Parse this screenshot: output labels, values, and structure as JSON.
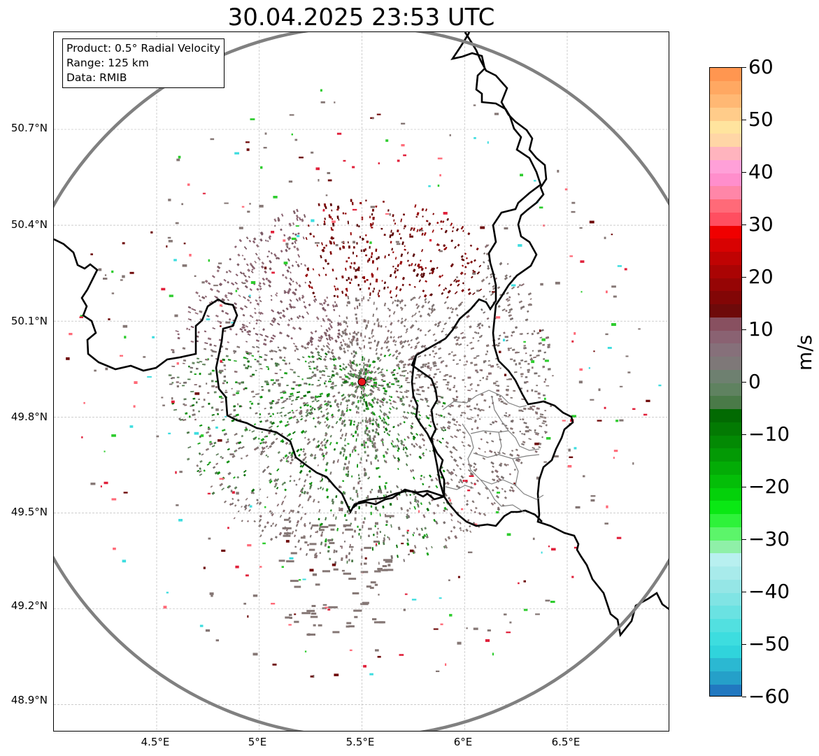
{
  "title": "30.04.2025 23:53 UTC",
  "info": {
    "product": "Product: 0.5° Radial Velocity",
    "range": "Range: 125 km",
    "data": "Data: RMIB"
  },
  "map": {
    "lat_ticks": [
      "50.7°N",
      "50.4°N",
      "50.1°N",
      "49.8°N",
      "49.5°N",
      "49.2°N",
      "48.9°N"
    ],
    "lon_ticks": [
      "4.5°E",
      "5°E",
      "5.5°E",
      "6°E",
      "6.5°E"
    ],
    "radar_site": {
      "lon": 5.5,
      "lat": 49.91,
      "color": "#e8141c"
    },
    "range_ring_color": "#808080",
    "border_color": "#000000"
  },
  "colorbar": {
    "unit": "m/s",
    "min": -60,
    "max": 60,
    "tick_labels": [
      "60",
      "50",
      "40",
      "30",
      "20",
      "10",
      "0",
      "−10",
      "−20",
      "−30",
      "−40",
      "−50",
      "−60"
    ],
    "colors": [
      "#2178c0",
      "#25a0c9",
      "#2bb8d2",
      "#30d4dc",
      "#3ddddf",
      "#52e0e0",
      "#6ae2e2",
      "#80e4e4",
      "#95e6e6",
      "#a8ebeb",
      "#b8f0f0",
      "#8ff0a8",
      "#5cf56a",
      "#2ef23a",
      "#0ae814",
      "#04d10a",
      "#04be08",
      "#03ac06",
      "#039a05",
      "#038a04",
      "#037a03",
      "#026a02",
      "#4a7a48",
      "#5f8260",
      "#6e8070",
      "#7e7878",
      "#86707a",
      "#8a6272",
      "#885060",
      "#6e0a0a",
      "#820606",
      "#960505",
      "#aa0404",
      "#c00303",
      "#d80202",
      "#f00000",
      "#ff4e60",
      "#ff6a78",
      "#ff86a8",
      "#ff8ecc",
      "#ffa0d8",
      "#ffb4be",
      "#ffd6a6",
      "#ffe49e",
      "#ffcc8a",
      "#ffb874",
      "#ffa862",
      "#ff9650"
    ]
  }
}
